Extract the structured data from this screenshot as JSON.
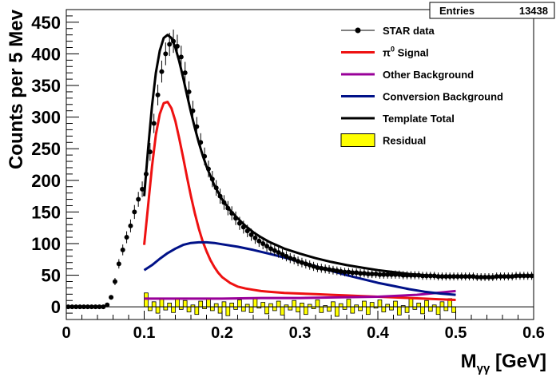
{
  "chart_data": {
    "type": "line",
    "xlabel": "M_γγ [GeV]",
    "ylabel": "Counts per 5 Mev",
    "xlim": [
      0,
      0.6
    ],
    "ylim": [
      -20,
      470
    ],
    "x_ticks": [
      "0",
      "0.1",
      "0.2",
      "0.3",
      "0.4",
      "0.5",
      "0.6"
    ],
    "y_ticks": [
      "0",
      "50",
      "100",
      "150",
      "200",
      "250",
      "300",
      "350",
      "400",
      "450"
    ],
    "stats_box": {
      "label": "Entries",
      "value": "13438"
    },
    "legend": {
      "placement": "top-right",
      "entries": [
        {
          "label": "STAR data",
          "marker": "point",
          "color": "#000000"
        },
        {
          "label": "π⁰ Signal",
          "marker": "line",
          "color": "#ee1111"
        },
        {
          "label": "Other Background",
          "marker": "line",
          "color": "#990099"
        },
        {
          "label": "Conversion Background",
          "marker": "line",
          "color": "#001188"
        },
        {
          "label": "Template Total",
          "marker": "line",
          "color": "#000000"
        },
        {
          "label": "Residual",
          "marker": "fill",
          "color": "#ffff00"
        }
      ]
    },
    "data_points": {
      "x": [
        0.0025,
        0.0075,
        0.0125,
        0.0175,
        0.0225,
        0.0275,
        0.0325,
        0.0375,
        0.0425,
        0.0475,
        0.0525,
        0.0575,
        0.0625,
        0.0675,
        0.0725,
        0.0775,
        0.0825,
        0.0875,
        0.0925,
        0.0975,
        0.1025,
        0.1075,
        0.1125,
        0.1175,
        0.1225,
        0.1275,
        0.1325,
        0.1375,
        0.1425,
        0.1475,
        0.1525,
        0.1575,
        0.1625,
        0.1675,
        0.1725,
        0.1775,
        0.1825,
        0.1875,
        0.1925,
        0.1975,
        0.2025,
        0.2075,
        0.2125,
        0.2175,
        0.2225,
        0.2275,
        0.2325,
        0.2375,
        0.2425,
        0.2475,
        0.2525,
        0.2575,
        0.2625,
        0.2675,
        0.2725,
        0.2775,
        0.2825,
        0.2875,
        0.2925,
        0.2975,
        0.3025,
        0.3075,
        0.3125,
        0.3175,
        0.3225,
        0.3275,
        0.3325,
        0.3375,
        0.3425,
        0.3475,
        0.3525,
        0.3575,
        0.3625,
        0.3675,
        0.3725,
        0.3775,
        0.3825,
        0.3875,
        0.3925,
        0.3975,
        0.4025,
        0.4075,
        0.4125,
        0.4175,
        0.4225,
        0.4275,
        0.4325,
        0.4375,
        0.4425,
        0.4475,
        0.4525,
        0.4575,
        0.4625,
        0.4675,
        0.4725,
        0.4775,
        0.4825,
        0.4875,
        0.4925,
        0.4975,
        0.5025,
        0.5075,
        0.5125,
        0.5175,
        0.5225,
        0.5275,
        0.5325,
        0.5375,
        0.5425,
        0.5475,
        0.5525,
        0.5575,
        0.5625,
        0.5675,
        0.5725,
        0.5775,
        0.5825,
        0.5875,
        0.5925,
        0.5975
      ],
      "y": [
        0,
        0,
        0,
        0,
        0,
        0,
        0,
        0,
        0,
        0,
        3,
        15,
        40,
        68,
        90,
        110,
        128,
        150,
        170,
        186,
        210,
        245,
        290,
        335,
        372,
        400,
        415,
        420,
        412,
        395,
        370,
        340,
        310,
        285,
        260,
        238,
        218,
        202,
        188,
        175,
        165,
        156,
        148,
        140,
        132,
        126,
        120,
        114,
        109,
        104,
        100,
        96,
        92,
        89,
        86,
        83,
        80,
        77,
        75,
        72,
        70,
        68,
        66,
        64,
        62,
        61,
        60,
        59,
        58,
        57,
        56,
        55,
        55,
        54,
        54,
        53,
        53,
        52,
        52,
        52,
        51,
        51,
        51,
        51,
        51,
        51,
        50,
        50,
        50,
        50,
        50,
        49,
        49,
        49,
        49,
        48,
        48,
        48,
        48,
        48,
        48,
        48,
        48,
        48,
        48,
        47,
        47,
        47,
        47,
        47,
        48,
        48,
        48,
        48,
        48,
        49,
        49,
        49,
        49,
        49
      ]
    },
    "series": [
      {
        "name": "π⁰ Signal",
        "color": "#ee1111",
        "x": [
          0.1,
          0.105,
          0.11,
          0.115,
          0.12,
          0.125,
          0.13,
          0.135,
          0.14,
          0.145,
          0.15,
          0.155,
          0.16,
          0.165,
          0.17,
          0.175,
          0.18,
          0.185,
          0.19,
          0.195,
          0.2,
          0.21,
          0.22,
          0.23,
          0.24,
          0.25,
          0.26,
          0.28,
          0.3,
          0.32,
          0.34,
          0.36,
          0.38,
          0.4,
          0.42,
          0.44,
          0.46,
          0.48,
          0.5
        ],
        "y": [
          98,
          160,
          222,
          272,
          305,
          322,
          324,
          314,
          294,
          266,
          236,
          205,
          175,
          148,
          124,
          104,
          88,
          74,
          63,
          54,
          47,
          38,
          32,
          29,
          27,
          25,
          24,
          22,
          21,
          20,
          19,
          18,
          17,
          16,
          15,
          14,
          13,
          12,
          11
        ]
      },
      {
        "name": "Other Background",
        "color": "#990099",
        "x": [
          0.1,
          0.15,
          0.2,
          0.25,
          0.3,
          0.35,
          0.4,
          0.45,
          0.5
        ],
        "y": [
          13,
          13,
          13,
          14,
          14,
          15,
          16,
          19,
          25
        ]
      },
      {
        "name": "Conversion Background",
        "color": "#001188",
        "x": [
          0.1,
          0.11,
          0.12,
          0.13,
          0.14,
          0.15,
          0.16,
          0.17,
          0.18,
          0.19,
          0.2,
          0.22,
          0.24,
          0.26,
          0.28,
          0.3,
          0.32,
          0.34,
          0.36,
          0.38,
          0.4,
          0.42,
          0.44,
          0.46,
          0.48,
          0.5
        ],
        "y": [
          58,
          66,
          76,
          85,
          92,
          98,
          101,
          102,
          102,
          101,
          99,
          95,
          90,
          84,
          78,
          71,
          64,
          57,
          50,
          44,
          38,
          33,
          28,
          24,
          21,
          19
        ]
      },
      {
        "name": "Template Total",
        "color": "#000000",
        "x": [
          0.1,
          0.105,
          0.11,
          0.115,
          0.12,
          0.125,
          0.13,
          0.135,
          0.14,
          0.145,
          0.15,
          0.155,
          0.16,
          0.165,
          0.17,
          0.175,
          0.18,
          0.19,
          0.2,
          0.21,
          0.22,
          0.23,
          0.24,
          0.25,
          0.26,
          0.28,
          0.3,
          0.32,
          0.34,
          0.36,
          0.38,
          0.4,
          0.42,
          0.44,
          0.46,
          0.48,
          0.5
        ],
        "y": [
          175,
          250,
          318,
          370,
          405,
          425,
          430,
          425,
          410,
          388,
          362,
          335,
          308,
          283,
          260,
          240,
          222,
          192,
          170,
          153,
          140,
          128,
          118,
          110,
          103,
          92,
          84,
          77,
          71,
          66,
          62,
          58,
          55,
          52,
          50,
          48,
          48
        ]
      }
    ],
    "residual": {
      "name": "Residual",
      "color": "#ffff00",
      "x": [
        0.1025,
        0.1075,
        0.1125,
        0.1175,
        0.1225,
        0.1275,
        0.1325,
        0.1375,
        0.1425,
        0.1475,
        0.1525,
        0.1575,
        0.1625,
        0.1675,
        0.1725,
        0.1775,
        0.1825,
        0.1875,
        0.1925,
        0.1975,
        0.2025,
        0.2075,
        0.2125,
        0.2175,
        0.2225,
        0.2275,
        0.2325,
        0.2375,
        0.2425,
        0.2475,
        0.2525,
        0.2575,
        0.2625,
        0.2675,
        0.2725,
        0.2775,
        0.2825,
        0.2875,
        0.2925,
        0.2975,
        0.3025,
        0.3075,
        0.3125,
        0.3175,
        0.3225,
        0.3275,
        0.3325,
        0.3375,
        0.3425,
        0.3475,
        0.3525,
        0.3575,
        0.3625,
        0.3675,
        0.3725,
        0.3775,
        0.3825,
        0.3875,
        0.3925,
        0.3975,
        0.4025,
        0.4075,
        0.4125,
        0.4175,
        0.4225,
        0.4275,
        0.4325,
        0.4375,
        0.4425,
        0.4475,
        0.4525,
        0.4575,
        0.4625,
        0.4675,
        0.4725,
        0.4775,
        0.4825,
        0.4875,
        0.4925,
        0.4975
      ],
      "y": [
        22,
        -6,
        8,
        -10,
        12,
        -5,
        6,
        -9,
        14,
        -4,
        10,
        -8,
        3,
        -12,
        9,
        -3,
        12,
        -6,
        5,
        -10,
        8,
        -14,
        6,
        -4,
        11,
        -7,
        4,
        -9,
        13,
        -2,
        7,
        -11,
        5,
        -6,
        9,
        -13,
        3,
        -5,
        10,
        -8,
        6,
        -12,
        4,
        -3,
        11,
        -9,
        2,
        -7,
        8,
        -15,
        5,
        -4,
        12,
        -10,
        3,
        -6,
        9,
        -12,
        7,
        -2,
        11,
        -8,
        4,
        -5,
        9,
        -13,
        2,
        -9,
        14,
        -4,
        6,
        -11,
        10,
        -7,
        3,
        -12,
        8,
        -6,
        13,
        -9
      ]
    }
  }
}
